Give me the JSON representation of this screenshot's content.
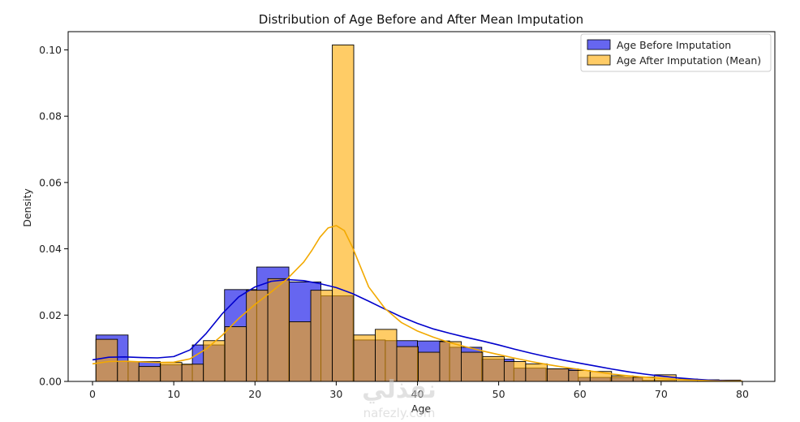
{
  "chart_data": {
    "type": "histogram",
    "title": "Distribution of Age Before and After Mean Imputation",
    "xlabel": "Age",
    "ylabel": "Density",
    "xlim": [
      -3,
      84
    ],
    "ylim": [
      0,
      0.1055
    ],
    "xticks": [
      0,
      10,
      20,
      30,
      40,
      50,
      60,
      70,
      80
    ],
    "yticks": [
      0.0,
      0.02,
      0.04,
      0.06,
      0.08,
      0.1
    ],
    "ytick_labels": [
      "0.00",
      "0.02",
      "0.04",
      "0.06",
      "0.08",
      "0.10"
    ],
    "legend_position": "top-right",
    "grid": false,
    "series": [
      {
        "name": "Age Before Imputation",
        "kind": "histogram+kde",
        "color": "#0000cc",
        "fill": "rgba(0,0,230,0.6)",
        "bin_edges": [
          0.42,
          4.38,
          8.33,
          12.29,
          16.25,
          20.21,
          24.17,
          28.12,
          32.08,
          36.04,
          40.0,
          43.96,
          47.92,
          51.87,
          55.83,
          59.79,
          63.75,
          67.71,
          71.67,
          75.62,
          79.58
        ],
        "density": [
          0.014,
          0.006,
          0.005,
          0.011,
          0.0277,
          0.0345,
          0.03,
          0.0258,
          0.0125,
          0.0123,
          0.0122,
          0.0103,
          0.0067,
          0.004,
          0.0038,
          0.0012,
          0.0012,
          0.0003,
          0.0,
          0.0003
        ],
        "kde_x": [
          0,
          2,
          4,
          6,
          8,
          10,
          12,
          14,
          16,
          18,
          20,
          22,
          24,
          26,
          28,
          30,
          32,
          34,
          36,
          38,
          40,
          42,
          44,
          46,
          48,
          50,
          52,
          54,
          56,
          58,
          60,
          62,
          64,
          66,
          68,
          70,
          72,
          74,
          76,
          78,
          80
        ],
        "kde_y": [
          0.0065,
          0.0073,
          0.0074,
          0.0072,
          0.0071,
          0.0075,
          0.0095,
          0.0145,
          0.0205,
          0.0255,
          0.0285,
          0.0302,
          0.0307,
          0.0304,
          0.0295,
          0.0283,
          0.0265,
          0.0242,
          0.0218,
          0.0195,
          0.0175,
          0.0158,
          0.0145,
          0.0133,
          0.0122,
          0.011,
          0.0097,
          0.0085,
          0.0074,
          0.0064,
          0.0055,
          0.0046,
          0.0037,
          0.0029,
          0.0022,
          0.0016,
          0.0011,
          0.0007,
          0.0004,
          0.0002,
          0.0001
        ]
      },
      {
        "name": "Age After Imputation (Mean)",
        "kind": "histogram+kde",
        "color": "#f2a900",
        "fill": "rgba(255,170,0,0.6)",
        "bin_edges": [
          0.42,
          3.07,
          5.71,
          8.36,
          11.0,
          13.65,
          16.29,
          18.94,
          21.58,
          24.23,
          26.87,
          29.52,
          32.16,
          34.81,
          37.45,
          40.1,
          42.74,
          45.39,
          48.03,
          50.68,
          53.32,
          55.97,
          58.61,
          61.26,
          63.9,
          66.55,
          69.19,
          71.84,
          74.48,
          77.13,
          79.77
        ],
        "density": [
          0.0127,
          0.006,
          0.0045,
          0.0057,
          0.0052,
          0.0123,
          0.0165,
          0.0275,
          0.031,
          0.018,
          0.0275,
          0.1015,
          0.014,
          0.0157,
          0.0105,
          0.0088,
          0.012,
          0.0088,
          0.0075,
          0.006,
          0.0053,
          0.0038,
          0.0033,
          0.003,
          0.0017,
          0.0013,
          0.002,
          0.0007,
          0.0005,
          0.0004
        ],
        "kde_x": [
          0,
          2,
          4,
          6,
          8,
          10,
          12,
          14,
          16,
          18,
          20,
          22,
          24,
          26,
          27,
          28,
          29,
          30,
          31,
          32,
          33,
          34,
          36,
          38,
          40,
          42,
          44,
          46,
          48,
          50,
          52,
          54,
          56,
          58,
          60,
          62,
          64,
          66,
          68,
          70,
          72,
          74,
          76,
          78,
          80
        ],
        "kde_y": [
          0.0053,
          0.006,
          0.0061,
          0.0059,
          0.0057,
          0.0058,
          0.0068,
          0.0098,
          0.014,
          0.019,
          0.0232,
          0.027,
          0.031,
          0.036,
          0.0395,
          0.0435,
          0.0463,
          0.047,
          0.0455,
          0.0405,
          0.0345,
          0.0285,
          0.022,
          0.0178,
          0.0152,
          0.0133,
          0.0117,
          0.0104,
          0.0092,
          0.0081,
          0.007,
          0.006,
          0.0051,
          0.0043,
          0.0036,
          0.0029,
          0.0022,
          0.0017,
          0.0013,
          0.0009,
          0.0006,
          0.0004,
          0.0002,
          0.0001,
          0.0001
        ]
      }
    ],
    "overlap_color": "#b8825f"
  },
  "watermark": {
    "arabic": "نفذلي",
    "latin": "nafezly.com"
  }
}
